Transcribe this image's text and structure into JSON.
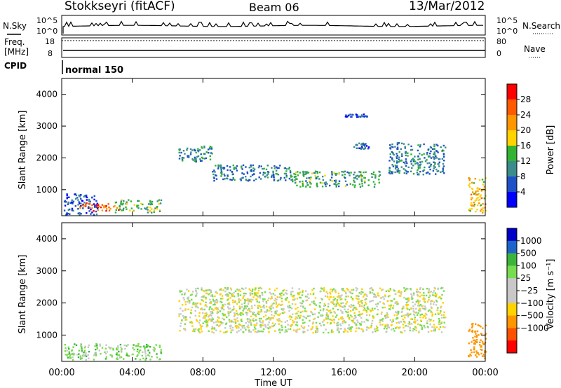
{
  "header": {
    "station": "Stokkseyri (fitACF)",
    "beam": "Beam 06",
    "date": "13/Mar/2012"
  },
  "noise_panel": {
    "left_label": "N.Sky",
    "left_ticks": [
      "10^5",
      "10^0"
    ],
    "right_ticks": [
      "10^5",
      "10^0"
    ],
    "right_label": "N.Search"
  },
  "freq_panel": {
    "left_label_line1": "Freq.",
    "left_label_line2": "[MHz]",
    "left_ticks": [
      "18",
      "8"
    ],
    "right_ticks": [
      "80",
      "0"
    ],
    "right_label": "Nave"
  },
  "cpid_panel": {
    "left_label": "CPID",
    "mode": "normal 150"
  },
  "power_panel": {
    "ylabel": "Slant Range [km]",
    "yticks": [
      "4000",
      "3000",
      "2000",
      "1000"
    ],
    "colorbar_label": "Power [dB]",
    "colorbar_ticks": [
      "28",
      "24",
      "20",
      "16",
      "12",
      "8",
      "4"
    ],
    "colorbar_colors": [
      "#ff0000",
      "#ff5a00",
      "#ff9600",
      "#ffd200",
      "#32b432",
      "#3c8c8c",
      "#1e50c8",
      "#0000ff"
    ]
  },
  "velocity_panel": {
    "ylabel": "Slant Range [km]",
    "yticks": [
      "4000",
      "3000",
      "2000",
      "1000"
    ],
    "colorbar_label": "Velocity [m s⁻¹]",
    "colorbar_ticks": [
      "1000",
      "500",
      "100",
      "25",
      "−25",
      "−100",
      "−500",
      "−1000"
    ],
    "colorbar_colors": [
      "#0000c8",
      "#1e64c8",
      "#3cb43c",
      "#78dc50",
      "#c8c8c8",
      "#c8c8c8",
      "#ffd200",
      "#ff9600",
      "#ff5000",
      "#ff0000"
    ]
  },
  "xaxis": {
    "ticks": [
      "00:00",
      "04:00",
      "08:00",
      "12:00",
      "16:00",
      "20:00",
      "00:00"
    ],
    "label": "Time UT"
  },
  "chart_data": {
    "type": "heatmap",
    "x_range_hours": [
      0,
      24
    ],
    "y_range_km": [
      180,
      4500
    ],
    "power_regions_db": [
      {
        "t0": 0.1,
        "t1": 2.0,
        "r0": 200,
        "r1": 900,
        "value": 6
      },
      {
        "t0": 1.0,
        "t1": 3.2,
        "r0": 350,
        "r1": 600,
        "value": 26
      },
      {
        "t0": 3.0,
        "t1": 5.6,
        "r0": 300,
        "r1": 700,
        "value": 14
      },
      {
        "t0": 6.6,
        "t1": 8.5,
        "r0": 1900,
        "r1": 2400,
        "value": 10
      },
      {
        "t0": 8.5,
        "t1": 13.0,
        "r0": 1300,
        "r1": 1800,
        "value": 9
      },
      {
        "t0": 13.0,
        "t1": 18.0,
        "r0": 1100,
        "r1": 1600,
        "value": 12
      },
      {
        "t0": 18.5,
        "t1": 21.7,
        "r0": 1500,
        "r1": 2500,
        "value": 9
      },
      {
        "t0": 16.5,
        "t1": 17.5,
        "r0": 2300,
        "r1": 2500,
        "value": 6
      },
      {
        "t0": 16.0,
        "t1": 17.3,
        "r0": 3300,
        "r1": 3400,
        "value": 5
      },
      {
        "t0": 23.0,
        "t1": 24.0,
        "r0": 300,
        "r1": 1400,
        "value": 20
      }
    ],
    "velocity_regions_ms": [
      {
        "t0": 0.1,
        "t1": 5.6,
        "r0": 250,
        "r1": 750,
        "value": 50
      },
      {
        "t0": 6.6,
        "t1": 21.7,
        "r0": 1100,
        "r1": 2500,
        "value": 0
      },
      {
        "t0": 23.0,
        "t1": 24.0,
        "r0": 300,
        "r1": 1400,
        "value": -300
      }
    ]
  }
}
